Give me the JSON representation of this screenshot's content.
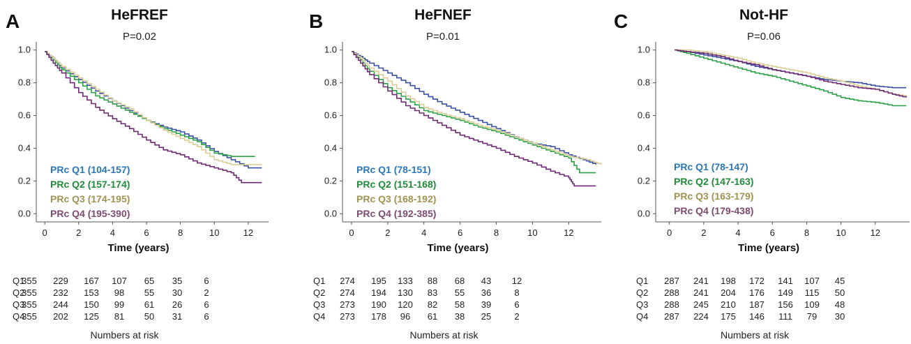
{
  "chart_data": [
    {
      "type": "line",
      "letter": "A",
      "title": "HeFREF",
      "p_value": "P=0.02",
      "xlabel": "Time (years)",
      "ylabel": "",
      "xlim": [
        -0.5,
        13.2
      ],
      "ylim": [
        -0.05,
        1.05
      ],
      "x_ticks": [
        "0",
        "2",
        "4",
        "6",
        "8",
        "10",
        "12"
      ],
      "y_ticks": [
        "0.0",
        "0.2",
        "0.4",
        "0.6",
        "0.8",
        "1.0"
      ],
      "series": [
        {
          "name": "PRc Q1 (104-157)",
          "color": "#3a4fa3",
          "label_color": "#2a77b8",
          "x": [
            0,
            0.5,
            1,
            2,
            3,
            4,
            5,
            6,
            7,
            8,
            9,
            10,
            11,
            12,
            12.8
          ],
          "y": [
            0.99,
            0.95,
            0.89,
            0.82,
            0.75,
            0.69,
            0.63,
            0.57,
            0.53,
            0.5,
            0.45,
            0.38,
            0.33,
            0.28,
            0.28
          ]
        },
        {
          "name": "PRc Q2 (157-174)",
          "color": "#2ca046",
          "label_color": "#1f8b3a",
          "x": [
            0,
            0.5,
            1,
            2,
            3,
            4,
            5,
            6,
            7,
            8,
            9,
            10,
            11,
            12,
            12.4
          ],
          "y": [
            0.99,
            0.94,
            0.88,
            0.8,
            0.72,
            0.67,
            0.62,
            0.57,
            0.52,
            0.48,
            0.44,
            0.37,
            0.35,
            0.35,
            0.35
          ]
        },
        {
          "name": "PRc Q3 (174-195)",
          "color": "#d8ce96",
          "label_color": "#9f9352",
          "x": [
            0,
            0.5,
            1,
            2,
            3,
            4,
            5,
            6,
            7,
            8,
            9,
            10,
            11,
            12,
            12.8
          ],
          "y": [
            0.99,
            0.95,
            0.9,
            0.83,
            0.76,
            0.69,
            0.64,
            0.57,
            0.51,
            0.46,
            0.41,
            0.33,
            0.3,
            0.3,
            0.3
          ]
        },
        {
          "name": "PRc Q4 (195-390)",
          "color": "#6e2a72",
          "label_color": "#7c4b6f",
          "x": [
            0,
            0.5,
            1,
            2,
            3,
            4,
            5,
            6,
            7,
            8,
            9,
            10,
            11,
            11.6,
            12.8
          ],
          "y": [
            0.99,
            0.92,
            0.86,
            0.74,
            0.65,
            0.58,
            0.52,
            0.45,
            0.39,
            0.36,
            0.31,
            0.28,
            0.25,
            0.19,
            0.19
          ]
        }
      ],
      "at_risk": {
        "label": "Numbers at risk",
        "rows": [
          {
            "group": "Q1",
            "values": [
              "355",
              "229",
              "167",
              "107",
              "65",
              "35",
              "6"
            ]
          },
          {
            "group": "Q2",
            "values": [
              "355",
              "232",
              "153",
              "98",
              "55",
              "30",
              "2"
            ]
          },
          {
            "group": "Q3",
            "values": [
              "355",
              "244",
              "150",
              "99",
              "61",
              "26",
              "6"
            ]
          },
          {
            "group": "Q4",
            "values": [
              "355",
              "202",
              "125",
              "81",
              "50",
              "31",
              "6"
            ]
          }
        ]
      }
    },
    {
      "type": "line",
      "letter": "B",
      "title": "HeFNEF",
      "p_value": "P=0.01",
      "xlabel": "Time (years)",
      "ylabel": "",
      "xlim": [
        -0.5,
        13.8
      ],
      "ylim": [
        -0.05,
        1.05
      ],
      "x_ticks": [
        "0",
        "2",
        "4",
        "6",
        "8",
        "10",
        "12"
      ],
      "y_ticks": [
        "0.0",
        "0.2",
        "0.4",
        "0.6",
        "0.8",
        "1.0"
      ],
      "series": [
        {
          "name": "PRc Q1 (78-151)",
          "color": "#3a4fa3",
          "label_color": "#2a77b8",
          "x": [
            0,
            0.5,
            1,
            2,
            3,
            4,
            5,
            6,
            7,
            8,
            9,
            10,
            11,
            12,
            12.8,
            13.5
          ],
          "y": [
            0.99,
            0.96,
            0.92,
            0.86,
            0.8,
            0.73,
            0.67,
            0.62,
            0.57,
            0.52,
            0.47,
            0.43,
            0.41,
            0.36,
            0.33,
            0.3
          ]
        },
        {
          "name": "PRc Q2 (151-168)",
          "color": "#2ca046",
          "label_color": "#1f8b3a",
          "x": [
            0,
            0.5,
            1,
            2,
            3,
            4,
            5,
            6,
            7,
            8,
            9,
            10,
            11,
            12,
            12.6,
            13.5
          ],
          "y": [
            0.99,
            0.94,
            0.87,
            0.77,
            0.7,
            0.63,
            0.6,
            0.57,
            0.53,
            0.5,
            0.46,
            0.42,
            0.38,
            0.34,
            0.25,
            0.25
          ]
        },
        {
          "name": "PRc Q3 (168-192)",
          "color": "#d8ce96",
          "label_color": "#9f9352",
          "x": [
            0,
            0.5,
            1,
            2,
            3,
            4,
            5,
            6,
            7,
            8,
            9,
            10,
            11,
            12,
            13,
            13.8
          ],
          "y": [
            0.99,
            0.95,
            0.89,
            0.81,
            0.72,
            0.65,
            0.61,
            0.58,
            0.54,
            0.51,
            0.47,
            0.43,
            0.39,
            0.35,
            0.33,
            0.3
          ]
        },
        {
          "name": "PRc Q4 (192-385)",
          "color": "#6e2a72",
          "label_color": "#7c4b6f",
          "x": [
            0,
            0.5,
            1,
            2,
            3,
            4,
            5,
            6,
            7,
            8,
            9,
            10,
            11,
            12,
            12.3,
            13.5
          ],
          "y": [
            0.99,
            0.92,
            0.85,
            0.75,
            0.66,
            0.6,
            0.54,
            0.48,
            0.44,
            0.4,
            0.35,
            0.31,
            0.26,
            0.22,
            0.17,
            0.17
          ]
        }
      ],
      "at_risk": {
        "label": "Numbers at risk",
        "rows": [
          {
            "group": "Q1",
            "values": [
              "274",
              "195",
              "133",
              "88",
              "68",
              "43",
              "12"
            ]
          },
          {
            "group": "Q2",
            "values": [
              "274",
              "194",
              "130",
              "83",
              "55",
              "36",
              "8"
            ]
          },
          {
            "group": "Q3",
            "values": [
              "273",
              "190",
              "120",
              "82",
              "58",
              "39",
              "6"
            ]
          },
          {
            "group": "Q4",
            "values": [
              "273",
              "178",
              "96",
              "61",
              "38",
              "25",
              "2"
            ]
          }
        ]
      }
    },
    {
      "type": "line",
      "letter": "C",
      "title": "Not-HF",
      "p_value": "P=0.06",
      "xlabel": "Time (years)",
      "ylabel": "",
      "xlim": [
        -0.8,
        14.0
      ],
      "ylim": [
        -0.05,
        1.05
      ],
      "x_ticks": [
        "0",
        "2",
        "4",
        "6",
        "8",
        "10",
        "12"
      ],
      "y_ticks": [
        "0.0",
        "0.2",
        "0.4",
        "0.6",
        "0.8",
        "1.0"
      ],
      "series": [
        {
          "name": "PRc Q1 (78-147)",
          "color": "#3a4fa3",
          "label_color": "#2a77b8",
          "x": [
            0.3,
            1,
            2,
            3,
            4,
            5,
            6,
            7,
            8,
            9,
            10,
            11,
            12,
            13,
            13.8
          ],
          "y": [
            1.0,
            0.99,
            0.97,
            0.95,
            0.93,
            0.9,
            0.88,
            0.86,
            0.84,
            0.82,
            0.81,
            0.8,
            0.78,
            0.77,
            0.77
          ]
        },
        {
          "name": "PRc Q2 (147-163)",
          "color": "#2ca046",
          "label_color": "#1f8b3a",
          "x": [
            0.3,
            1,
            2,
            3,
            4,
            5,
            6,
            7,
            8,
            9,
            10,
            11,
            12,
            13,
            13.8
          ],
          "y": [
            1.0,
            0.98,
            0.95,
            0.92,
            0.89,
            0.86,
            0.84,
            0.81,
            0.78,
            0.75,
            0.71,
            0.69,
            0.68,
            0.66,
            0.66
          ]
        },
        {
          "name": "PRc Q3 (163-179)",
          "color": "#d8ce96",
          "label_color": "#9f9352",
          "x": [
            0.3,
            1,
            2,
            3,
            4,
            5,
            6,
            7,
            8,
            9,
            10,
            11,
            12,
            13,
            13.8
          ],
          "y": [
            1.0,
            1.0,
            0.99,
            0.97,
            0.95,
            0.92,
            0.9,
            0.88,
            0.86,
            0.83,
            0.81,
            0.78,
            0.76,
            0.73,
            0.72
          ]
        },
        {
          "name": "PRc Q4 (179-438)",
          "color": "#6e2a72",
          "label_color": "#7c4b6f",
          "x": [
            0.3,
            1,
            2,
            3,
            4,
            5,
            6,
            7,
            8,
            9,
            10,
            11,
            12,
            13,
            13.8
          ],
          "y": [
            1.0,
            0.99,
            0.98,
            0.96,
            0.93,
            0.91,
            0.88,
            0.86,
            0.84,
            0.81,
            0.79,
            0.77,
            0.76,
            0.73,
            0.71
          ]
        }
      ],
      "at_risk": {
        "label": "Numbers at risk",
        "rows": [
          {
            "group": "Q1",
            "values": [
              "287",
              "241",
              "198",
              "172",
              "141",
              "107",
              "45"
            ]
          },
          {
            "group": "Q2",
            "values": [
              "288",
              "241",
              "204",
              "176",
              "149",
              "115",
              "50"
            ]
          },
          {
            "group": "Q3",
            "values": [
              "288",
              "245",
              "210",
              "187",
              "156",
              "109",
              "48"
            ]
          },
          {
            "group": "Q4",
            "values": [
              "287",
              "224",
              "175",
              "146",
              "111",
              "79",
              "30"
            ]
          }
        ]
      }
    }
  ]
}
